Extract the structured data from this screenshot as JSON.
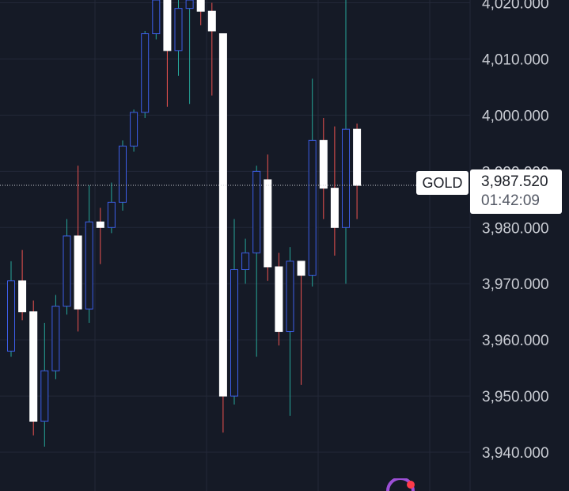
{
  "symbol": "GOLD",
  "current_price": "3,987.520",
  "countdown": "01:42:09",
  "colors": {
    "background": "#151a26",
    "grid": "#232838",
    "up_candle_border": "#3d5ee8",
    "down_candle_fill": "#ffffff",
    "up_wick": "#26a69a",
    "down_wick": "#ef5350",
    "price_line": "#c9ccd3"
  },
  "chart_data": {
    "type": "candlestick",
    "y_ticks": [
      "3,940.000",
      "3,950.000",
      "3,960.000",
      "3,970.000",
      "3,980.000",
      "3,990.000",
      "4,000.000",
      "4,010.000",
      "4,020.000"
    ],
    "y_tick_values": [
      3940,
      3950,
      3960,
      3970,
      3980,
      3990,
      4000,
      4010,
      4020
    ],
    "ylim": [
      3933.1,
      4020.5
    ],
    "current_price_value": 3987.52,
    "candles": [
      {
        "open": 3958.0,
        "close": 3970.5,
        "high": 3974.0,
        "low": 3957.0
      },
      {
        "open": 3970.5,
        "close": 3965.0,
        "high": 3976.0,
        "low": 3963.5
      },
      {
        "open": 3965.0,
        "close": 3945.5,
        "high": 3967.0,
        "low": 3943.0
      },
      {
        "open": 3945.5,
        "close": 3954.5,
        "high": 3963.0,
        "low": 3941.0
      },
      {
        "open": 3954.5,
        "close": 3966.0,
        "high": 3968.0,
        "low": 3953.0
      },
      {
        "open": 3966.0,
        "close": 3978.5,
        "high": 3981.5,
        "low": 3964.5
      },
      {
        "open": 3978.5,
        "close": 3965.5,
        "high": 3991.0,
        "low": 3961.5
      },
      {
        "open": 3965.5,
        "close": 3981.0,
        "high": 3987.5,
        "low": 3963.0
      },
      {
        "open": 3981.0,
        "close": 3980.0,
        "high": 3983.5,
        "low": 3973.5
      },
      {
        "open": 3980.0,
        "close": 3984.5,
        "high": 3988.0,
        "low": 3979.0
      },
      {
        "open": 3984.5,
        "close": 3994.5,
        "high": 3995.5,
        "low": 3983.0
      },
      {
        "open": 3994.5,
        "close": 4000.5,
        "high": 4001.0,
        "low": 3993.5
      },
      {
        "open": 4000.5,
        "close": 4014.5,
        "high": 4015.0,
        "low": 3999.5
      },
      {
        "open": 4014.5,
        "close": 4020.5,
        "high": 4020.5,
        "low": 4013.5
      },
      {
        "open": 4020.5,
        "close": 4011.5,
        "high": 4020.5,
        "low": 4001.5
      },
      {
        "open": 4011.5,
        "close": 4019.0,
        "high": 4020.5,
        "low": 4007.0
      },
      {
        "open": 4019.0,
        "close": 4020.5,
        "high": 4020.5,
        "low": 4002.0
      },
      {
        "open": 4020.5,
        "close": 4018.5,
        "high": 4020.5,
        "low": 4016.0
      },
      {
        "open": 4018.5,
        "close": 4015.0,
        "high": 4020.0,
        "low": 4003.5
      },
      {
        "open": 4014.5,
        "close": 3950.0,
        "high": 4014.5,
        "low": 3943.5
      },
      {
        "open": 3950.0,
        "close": 3972.5,
        "high": 3981.5,
        "low": 3948.5
      },
      {
        "open": 3972.5,
        "close": 3975.5,
        "high": 3978.0,
        "low": 3970.0
      },
      {
        "open": 3975.5,
        "close": 3990.0,
        "high": 3991.0,
        "low": 3957.0
      },
      {
        "open": 3988.5,
        "close": 3973.0,
        "high": 3993.0,
        "low": 3970.5
      },
      {
        "open": 3973.0,
        "close": 3961.5,
        "high": 3975.5,
        "low": 3959.0
      },
      {
        "open": 3961.5,
        "close": 3974.0,
        "high": 3976.5,
        "low": 3946.5
      },
      {
        "open": 3974.0,
        "close": 3971.5,
        "high": 3974.0,
        "low": 3952.0
      },
      {
        "open": 3971.5,
        "close": 3995.5,
        "high": 4006.5,
        "low": 3969.5
      },
      {
        "open": 3995.5,
        "close": 3987.0,
        "high": 3999.5,
        "low": 3981.5
      },
      {
        "open": 3987.0,
        "close": 3980.0,
        "high": 3998.0,
        "low": 3975.0
      },
      {
        "open": 3980.0,
        "close": 3997.5,
        "high": 4020.5,
        "low": 3970.0
      },
      {
        "open": 3997.5,
        "close": 3987.5,
        "high": 3998.5,
        "low": 3981.5
      }
    ]
  }
}
